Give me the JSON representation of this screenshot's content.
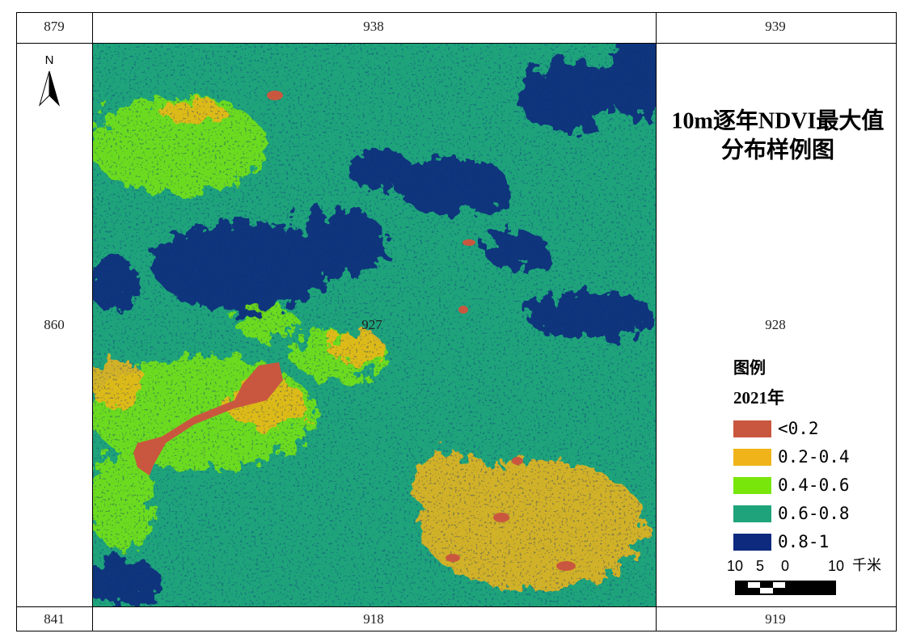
{
  "grid_labels": {
    "top": [
      "879",
      "938",
      "939"
    ],
    "middle": [
      "860",
      "927",
      "928"
    ],
    "bottom": [
      "841",
      "918",
      "919"
    ]
  },
  "north_arrow": "N",
  "title": [
    "10m逐年NDVI最大值",
    "分布样例图"
  ],
  "legend": {
    "title": "图例",
    "year": "2021年",
    "items": [
      {
        "label": "<0.2",
        "color": "#c9573f"
      },
      {
        "label": "0.2-0.4",
        "color": "#f0b41a"
      },
      {
        "label": "0.4-0.6",
        "color": "#78e60a"
      },
      {
        "label": "0.6-0.8",
        "color": "#1ea37b"
      },
      {
        "label": "0.8-1",
        "color": "#0d2a7e"
      }
    ]
  },
  "scale_bar": {
    "labels": [
      "10",
      "5",
      "0",
      "10"
    ],
    "unit": "千米"
  }
}
